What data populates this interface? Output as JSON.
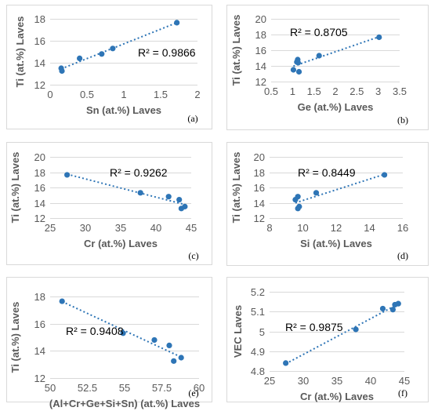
{
  "colors": {
    "marker": "#2E75B6",
    "trend": "#2E75B6",
    "grid": "#D9D9D9",
    "text": "#595959"
  },
  "chart_data": [
    {
      "type": "scatter",
      "panel_label": "(a)",
      "xlabel": "Sn (at.%) Laves",
      "ylabel": "Ti (at.%) Laves",
      "xlim": [
        0,
        2
      ],
      "ylim": [
        12,
        18
      ],
      "xticks": [
        0,
        0.5,
        1,
        1.5,
        2
      ],
      "yticks": [
        12,
        14,
        16,
        18
      ],
      "xtick_labels": [
        "0",
        "0.5",
        "1",
        "1.5",
        "2"
      ],
      "ytick_labels": [
        "12",
        "14",
        "16",
        "18"
      ],
      "r2_label": "R² = 0.9866",
      "trendline": true,
      "series": [
        {
          "x": [
            0.15,
            0.16,
            0.4,
            0.7,
            0.85,
            1.72
          ],
          "y": [
            13.5,
            13.25,
            14.4,
            14.8,
            15.3,
            17.65
          ]
        }
      ]
    },
    {
      "type": "scatter",
      "panel_label": "(b)",
      "xlabel": "Ge (at.%) Laves",
      "ylabel": "Ti (at.%) Laves",
      "xlim": [
        0.5,
        3.5
      ],
      "ylim": [
        12,
        20
      ],
      "xticks": [
        0.5,
        1,
        1.5,
        2,
        2.5,
        3,
        3.5
      ],
      "yticks": [
        12,
        14,
        16,
        18,
        20
      ],
      "xtick_labels": [
        "0.5",
        "1",
        "1.5",
        "2",
        "2.5",
        "3",
        "3.5"
      ],
      "ytick_labels": [
        "12",
        "14",
        "16",
        "18",
        "20"
      ],
      "r2_label": "R² = 0.8705",
      "trendline": true,
      "series": [
        {
          "x": [
            1.02,
            1.1,
            1.12,
            1.13,
            1.15,
            1.62,
            3.02
          ],
          "y": [
            13.5,
            14.5,
            14.8,
            14.4,
            13.25,
            15.3,
            17.65
          ]
        }
      ]
    },
    {
      "type": "scatter",
      "panel_label": "(c)",
      "xlabel": "Cr (at.%) Laves",
      "ylabel": "Ti (at.%) Laves",
      "xlim": [
        25,
        45
      ],
      "ylim": [
        12,
        20
      ],
      "xticks": [
        25,
        30,
        35,
        40,
        45
      ],
      "yticks": [
        12,
        14,
        16,
        18,
        20
      ],
      "xtick_labels": [
        "25",
        "30",
        "35",
        "40",
        "45"
      ],
      "ytick_labels": [
        "12",
        "14",
        "16",
        "18",
        "20"
      ],
      "r2_label": "R² = 0.9262",
      "trendline": true,
      "series": [
        {
          "x": [
            27.4,
            37.8,
            41.8,
            43.3,
            43.6,
            44.1
          ],
          "y": [
            17.65,
            15.3,
            14.8,
            14.4,
            13.25,
            13.5
          ]
        }
      ]
    },
    {
      "type": "scatter",
      "panel_label": "(d)",
      "xlabel": "Si (at.%) Laves",
      "ylabel": "Ti (at.%) Laves",
      "xlim": [
        8,
        16
      ],
      "ylim": [
        12,
        20
      ],
      "xticks": [
        8,
        10,
        12,
        14,
        16
      ],
      "yticks": [
        12,
        14,
        16,
        18,
        20
      ],
      "xtick_labels": [
        "8",
        "10",
        "12",
        "14",
        "16"
      ],
      "ytick_labels": [
        "12",
        "14",
        "16",
        "18",
        "20"
      ],
      "r2_label": "R² = 0.8449",
      "trendline": true,
      "series": [
        {
          "x": [
            9.55,
            9.7,
            9.7,
            9.78,
            10.8,
            14.9
          ],
          "y": [
            14.4,
            13.25,
            14.8,
            13.5,
            15.3,
            17.65
          ]
        }
      ]
    },
    {
      "type": "scatter",
      "panel_label": "(e)",
      "xlabel": "(Al+Cr+Ge+Si+Sn) (at.%) Laves",
      "ylabel": "Ti (at.%) Laves",
      "xlim": [
        50,
        60
      ],
      "ylim": [
        12,
        18
      ],
      "xticks": [
        50,
        52.5,
        55,
        57.5,
        60
      ],
      "yticks": [
        12,
        14,
        16,
        18
      ],
      "xtick_labels": [
        "50",
        "52.5",
        "55",
        "57.5",
        "60"
      ],
      "ytick_labels": [
        "12",
        "14",
        "16",
        "18"
      ],
      "r2_label": "R² = 0.9408",
      "trendline": true,
      "series": [
        {
          "x": [
            50.8,
            54.9,
            57.0,
            58.0,
            58.3,
            58.8
          ],
          "y": [
            17.65,
            15.3,
            14.8,
            14.4,
            13.25,
            13.5
          ]
        }
      ]
    },
    {
      "type": "scatter",
      "panel_label": "(f)",
      "xlabel": "Cr (at.%) Laves",
      "ylabel": "VEC Laves",
      "xlim": [
        25,
        45
      ],
      "ylim": [
        4.8,
        5.2
      ],
      "xticks": [
        25,
        30,
        35,
        40,
        45
      ],
      "yticks": [
        4.8,
        4.9,
        5,
        5.1,
        5.2
      ],
      "xtick_labels": [
        "25",
        "30",
        "35",
        "40",
        "45"
      ],
      "ytick_labels": [
        "4.8",
        "4.9",
        "5",
        "5.1",
        "5.2"
      ],
      "r2_label": "R² = 0.9875",
      "trendline": true,
      "series": [
        {
          "x": [
            27.4,
            37.8,
            41.8,
            43.3,
            43.6,
            44.1
          ],
          "y": [
            4.84,
            5.01,
            5.115,
            5.11,
            5.135,
            5.14
          ]
        }
      ]
    }
  ]
}
